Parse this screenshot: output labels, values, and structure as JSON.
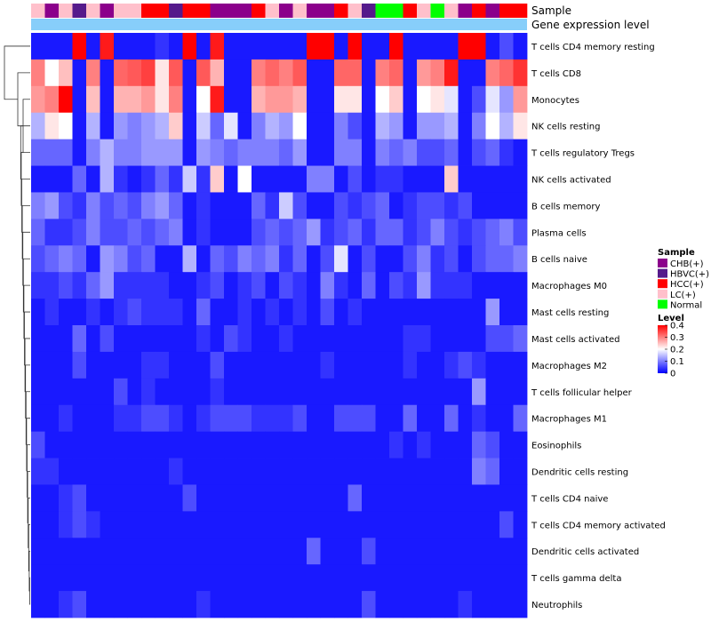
{
  "chart_data": {
    "type": "heatmap",
    "annotation_tracks": [
      {
        "name": "Sample"
      },
      {
        "name": "Gene expression level"
      }
    ],
    "sample_groups": [
      "LC(+)",
      "CHB(+)",
      "LC(+)",
      "HBVC(+)",
      "LC(+)",
      "CHB(+)",
      "LC(+)",
      "LC(+)",
      "HCC(+)",
      "HCC(+)",
      "HBVC(+)",
      "HCC(+)",
      "HCC(+)",
      "CHB(+)",
      "CHB(+)",
      "CHB(+)",
      "HCC(+)",
      "LC(+)",
      "CHB(+)",
      "LC(+)",
      "CHB(+)",
      "CHB(+)",
      "HCC(+)",
      "LC(+)",
      "HBVC(+)",
      "Normal",
      "Normal",
      "HCC(+)",
      "LC(+)",
      "Normal",
      "LC(+)",
      "CHB(+)",
      "HCC(+)",
      "CHB(+)",
      "HCC(+)",
      "HCC(+)"
    ],
    "expression_annotation_color": "#87cefa",
    "cell_types": [
      "T cells CD4 memory resting",
      "T cells CD8",
      "Monocytes",
      "NK cells resting",
      "T cells regulatory  Tregs",
      "NK cells activated",
      "B cells memory",
      "Plasma cells",
      "B cells naive",
      "Macrophages M0",
      "Mast cells resting",
      "Mast cells activated",
      "Macrophages M2",
      "T cells follicular helper",
      "Macrophages M1",
      "Eosinophils",
      "Dendritic cells resting",
      "T cells CD4 naive",
      "T cells CD4 memory activated",
      "Dendritic cells activated",
      "T cells gamma delta",
      "Neutrophils"
    ],
    "values": [
      [
        0.02,
        0.02,
        0.02,
        0.4,
        0.02,
        0.38,
        0.02,
        0.02,
        0.02,
        0.04,
        0.02,
        0.4,
        0.02,
        0.38,
        0.02,
        0.02,
        0.02,
        0.02,
        0.02,
        0.02,
        0.4,
        0.4,
        0.02,
        0.4,
        0.02,
        0.02,
        0.4,
        0.02,
        0.02,
        0.02,
        0.02,
        0.4,
        0.4,
        0.02,
        0.06,
        0.02
      ],
      [
        0.3,
        0.2,
        0.25,
        0.02,
        0.3,
        0.02,
        0.32,
        0.33,
        0.35,
        0.22,
        0.33,
        0.02,
        0.33,
        0.26,
        0.02,
        0.02,
        0.3,
        0.32,
        0.3,
        0.33,
        0.02,
        0.02,
        0.32,
        0.32,
        0.02,
        0.3,
        0.32,
        0.02,
        0.28,
        0.3,
        0.38,
        0.02,
        0.02,
        0.3,
        0.32,
        0.36
      ],
      [
        0.28,
        0.3,
        0.4,
        0.02,
        0.25,
        0.02,
        0.26,
        0.26,
        0.28,
        0.22,
        0.3,
        0.02,
        0.2,
        0.38,
        0.02,
        0.02,
        0.26,
        0.28,
        0.28,
        0.26,
        0.02,
        0.02,
        0.22,
        0.22,
        0.02,
        0.2,
        0.24,
        0.02,
        0.2,
        0.22,
        0.18,
        0.02,
        0.06,
        0.18,
        0.12,
        0.28
      ],
      [
        0.14,
        0.22,
        0.2,
        0.02,
        0.14,
        0.02,
        0.12,
        0.1,
        0.12,
        0.14,
        0.24,
        0.02,
        0.16,
        0.08,
        0.18,
        0.02,
        0.1,
        0.14,
        0.12,
        0.2,
        0.02,
        0.02,
        0.1,
        0.06,
        0.02,
        0.14,
        0.12,
        0.02,
        0.12,
        0.12,
        0.14,
        0.02,
        0.1,
        0.2,
        0.14,
        0.22
      ],
      [
        0.08,
        0.08,
        0.08,
        0.02,
        0.1,
        0.14,
        0.1,
        0.1,
        0.12,
        0.12,
        0.12,
        0.02,
        0.12,
        0.1,
        0.08,
        0.1,
        0.1,
        0.1,
        0.08,
        0.12,
        0.02,
        0.02,
        0.1,
        0.1,
        0.02,
        0.1,
        0.08,
        0.1,
        0.06,
        0.06,
        0.08,
        0.02,
        0.06,
        0.08,
        0.04,
        0.02
      ],
      [
        0.02,
        0.02,
        0.02,
        0.08,
        0.02,
        0.14,
        0.04,
        0.02,
        0.04,
        0.08,
        0.04,
        0.16,
        0.04,
        0.24,
        0.02,
        0.2,
        0.02,
        0.02,
        0.02,
        0.02,
        0.1,
        0.1,
        0.02,
        0.06,
        0.02,
        0.04,
        0.04,
        0.02,
        0.02,
        0.02,
        0.24,
        0.02,
        0.02,
        0.02,
        0.02,
        0.02
      ],
      [
        0.1,
        0.12,
        0.06,
        0.04,
        0.1,
        0.06,
        0.08,
        0.06,
        0.1,
        0.12,
        0.08,
        0.02,
        0.04,
        0.02,
        0.02,
        0.02,
        0.08,
        0.04,
        0.16,
        0.06,
        0.02,
        0.02,
        0.06,
        0.04,
        0.06,
        0.08,
        0.02,
        0.04,
        0.06,
        0.06,
        0.04,
        0.06,
        0.02,
        0.02,
        0.02,
        0.02
      ],
      [
        0.08,
        0.04,
        0.04,
        0.06,
        0.1,
        0.06,
        0.06,
        0.08,
        0.06,
        0.08,
        0.1,
        0.02,
        0.04,
        0.02,
        0.02,
        0.02,
        0.06,
        0.08,
        0.06,
        0.08,
        0.12,
        0.04,
        0.06,
        0.08,
        0.04,
        0.08,
        0.08,
        0.04,
        0.06,
        0.1,
        0.06,
        0.04,
        0.06,
        0.08,
        0.1,
        0.06
      ],
      [
        0.06,
        0.08,
        0.1,
        0.08,
        0.02,
        0.12,
        0.1,
        0.06,
        0.08,
        0.02,
        0.02,
        0.14,
        0.02,
        0.08,
        0.06,
        0.1,
        0.08,
        0.1,
        0.04,
        0.08,
        0.02,
        0.06,
        0.18,
        0.02,
        0.06,
        0.02,
        0.02,
        0.06,
        0.1,
        0.04,
        0.06,
        0.02,
        0.06,
        0.08,
        0.08,
        0.1
      ],
      [
        0.04,
        0.04,
        0.06,
        0.04,
        0.08,
        0.12,
        0.04,
        0.04,
        0.04,
        0.04,
        0.02,
        0.02,
        0.04,
        0.06,
        0.02,
        0.04,
        0.06,
        0.02,
        0.06,
        0.04,
        0.02,
        0.1,
        0.04,
        0.02,
        0.08,
        0.02,
        0.06,
        0.04,
        0.12,
        0.04,
        0.04,
        0.04,
        0.02,
        0.02,
        0.02,
        0.02
      ],
      [
        0.02,
        0.04,
        0.02,
        0.02,
        0.04,
        0.02,
        0.04,
        0.06,
        0.04,
        0.04,
        0.04,
        0.02,
        0.08,
        0.02,
        0.02,
        0.04,
        0.02,
        0.04,
        0.02,
        0.04,
        0.02,
        0.06,
        0.02,
        0.04,
        0.02,
        0.02,
        0.02,
        0.02,
        0.02,
        0.02,
        0.02,
        0.02,
        0.02,
        0.12,
        0.02,
        0.02
      ],
      [
        0.02,
        0.02,
        0.02,
        0.08,
        0.02,
        0.06,
        0.02,
        0.02,
        0.02,
        0.02,
        0.02,
        0.02,
        0.04,
        0.02,
        0.06,
        0.04,
        0.02,
        0.02,
        0.04,
        0.02,
        0.02,
        0.02,
        0.02,
        0.02,
        0.02,
        0.02,
        0.02,
        0.04,
        0.04,
        0.02,
        0.02,
        0.02,
        0.02,
        0.06,
        0.06,
        0.08
      ],
      [
        0.02,
        0.02,
        0.02,
        0.06,
        0.02,
        0.02,
        0.02,
        0.02,
        0.04,
        0.04,
        0.02,
        0.02,
        0.02,
        0.06,
        0.02,
        0.02,
        0.02,
        0.02,
        0.02,
        0.02,
        0.02,
        0.04,
        0.02,
        0.02,
        0.02,
        0.02,
        0.02,
        0.04,
        0.02,
        0.02,
        0.04,
        0.06,
        0.04,
        0.02,
        0.02,
        0.02
      ],
      [
        0.02,
        0.02,
        0.02,
        0.02,
        0.02,
        0.02,
        0.06,
        0.02,
        0.04,
        0.02,
        0.02,
        0.02,
        0.02,
        0.04,
        0.02,
        0.02,
        0.02,
        0.02,
        0.02,
        0.02,
        0.02,
        0.02,
        0.02,
        0.02,
        0.02,
        0.02,
        0.02,
        0.02,
        0.02,
        0.02,
        0.02,
        0.02,
        0.12,
        0.02,
        0.02,
        0.02
      ],
      [
        0.02,
        0.02,
        0.04,
        0.02,
        0.02,
        0.02,
        0.04,
        0.04,
        0.06,
        0.06,
        0.04,
        0.02,
        0.04,
        0.06,
        0.06,
        0.06,
        0.04,
        0.04,
        0.04,
        0.06,
        0.02,
        0.02,
        0.06,
        0.06,
        0.06,
        0.02,
        0.02,
        0.08,
        0.02,
        0.02,
        0.08,
        0.02,
        0.04,
        0.02,
        0.02,
        0.08
      ],
      [
        0.06,
        0.02,
        0.02,
        0.02,
        0.02,
        0.02,
        0.02,
        0.02,
        0.02,
        0.02,
        0.02,
        0.02,
        0.02,
        0.02,
        0.02,
        0.02,
        0.02,
        0.02,
        0.02,
        0.02,
        0.02,
        0.02,
        0.02,
        0.02,
        0.02,
        0.02,
        0.04,
        0.02,
        0.04,
        0.02,
        0.02,
        0.02,
        0.08,
        0.06,
        0.02,
        0.02
      ],
      [
        0.04,
        0.04,
        0.02,
        0.02,
        0.02,
        0.02,
        0.02,
        0.02,
        0.02,
        0.02,
        0.04,
        0.02,
        0.02,
        0.02,
        0.02,
        0.02,
        0.02,
        0.02,
        0.02,
        0.02,
        0.02,
        0.02,
        0.02,
        0.02,
        0.02,
        0.02,
        0.02,
        0.02,
        0.02,
        0.02,
        0.02,
        0.02,
        0.1,
        0.08,
        0.02,
        0.02
      ],
      [
        0.02,
        0.02,
        0.04,
        0.06,
        0.02,
        0.02,
        0.02,
        0.02,
        0.02,
        0.02,
        0.02,
        0.06,
        0.02,
        0.02,
        0.02,
        0.02,
        0.02,
        0.02,
        0.02,
        0.02,
        0.02,
        0.02,
        0.02,
        0.08,
        0.02,
        0.02,
        0.02,
        0.02,
        0.02,
        0.02,
        0.02,
        0.02,
        0.02,
        0.02,
        0.02,
        0.02
      ],
      [
        0.02,
        0.02,
        0.04,
        0.06,
        0.04,
        0.02,
        0.02,
        0.02,
        0.02,
        0.02,
        0.02,
        0.02,
        0.02,
        0.02,
        0.02,
        0.02,
        0.02,
        0.02,
        0.02,
        0.02,
        0.02,
        0.02,
        0.02,
        0.02,
        0.02,
        0.02,
        0.02,
        0.02,
        0.02,
        0.02,
        0.02,
        0.02,
        0.02,
        0.02,
        0.06,
        0.02
      ],
      [
        0.02,
        0.02,
        0.02,
        0.02,
        0.02,
        0.02,
        0.02,
        0.02,
        0.02,
        0.02,
        0.02,
        0.02,
        0.02,
        0.02,
        0.02,
        0.02,
        0.02,
        0.02,
        0.02,
        0.02,
        0.08,
        0.02,
        0.02,
        0.02,
        0.06,
        0.02,
        0.02,
        0.02,
        0.02,
        0.02,
        0.02,
        0.02,
        0.02,
        0.02,
        0.02,
        0.02
      ],
      [
        0.02,
        0.02,
        0.02,
        0.02,
        0.02,
        0.02,
        0.02,
        0.02,
        0.02,
        0.02,
        0.02,
        0.02,
        0.02,
        0.02,
        0.02,
        0.02,
        0.02,
        0.02,
        0.02,
        0.02,
        0.02,
        0.02,
        0.02,
        0.02,
        0.02,
        0.02,
        0.02,
        0.02,
        0.02,
        0.02,
        0.02,
        0.02,
        0.02,
        0.02,
        0.02,
        0.02
      ],
      [
        0.02,
        0.02,
        0.04,
        0.06,
        0.02,
        0.02,
        0.02,
        0.02,
        0.02,
        0.02,
        0.02,
        0.02,
        0.04,
        0.02,
        0.02,
        0.02,
        0.02,
        0.02,
        0.02,
        0.02,
        0.02,
        0.02,
        0.02,
        0.02,
        0.06,
        0.02,
        0.02,
        0.02,
        0.02,
        0.02,
        0.02,
        0.04,
        0.02,
        0.02,
        0.02,
        0.02
      ]
    ],
    "color_scale": {
      "min": 0,
      "mid": 0.2,
      "max": 0.4,
      "colors": [
        "#0000ff",
        "#ffffff",
        "#ff0000"
      ]
    },
    "legend": {
      "sample_title": "Sample",
      "sample_entries": [
        {
          "label": "CHB(+)",
          "color": "#8b008b"
        },
        {
          "label": "HBVC(+)",
          "color": "#551a8b"
        },
        {
          "label": "HCC(+)",
          "color": "#ff0000"
        },
        {
          "label": "LC(+)",
          "color": "#ffc0cb"
        },
        {
          "label": "Normal",
          "color": "#00ff00"
        }
      ],
      "level_title": "Level",
      "level_ticks": [
        {
          "value": 0.4,
          "label": "0.4"
        },
        {
          "value": 0.3,
          "label": "0.3"
        },
        {
          "value": 0.2,
          "label": "0.2"
        },
        {
          "value": 0.1,
          "label": "0.1"
        },
        {
          "value": 0,
          "label": "0"
        }
      ],
      "placement": "right"
    }
  }
}
